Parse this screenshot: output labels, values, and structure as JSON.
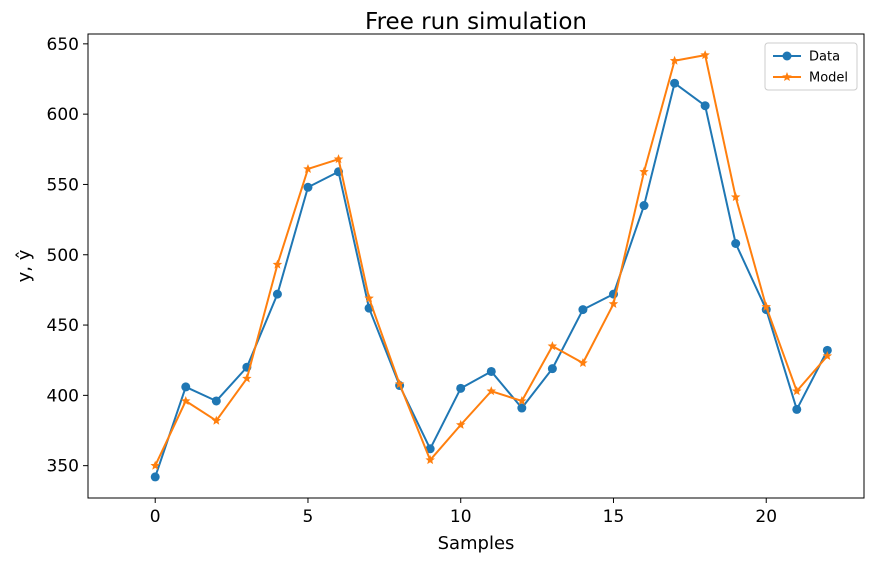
{
  "chart_data": {
    "type": "line",
    "title": "Free run simulation",
    "xlabel": "Samples",
    "ylabel": "y, ŷ",
    "xlim": [
      -2.2,
      23.2
    ],
    "ylim": [
      327,
      657
    ],
    "xticks": [
      0,
      5,
      10,
      15,
      20
    ],
    "yticks": [
      350,
      400,
      450,
      500,
      550,
      600,
      650
    ],
    "grid": false,
    "legend_position": "top-right",
    "x": [
      0,
      1,
      2,
      3,
      4,
      5,
      6,
      7,
      8,
      9,
      10,
      11,
      12,
      13,
      14,
      15,
      16,
      17,
      18,
      19,
      20,
      21,
      22
    ],
    "series": [
      {
        "name": "Data",
        "color": "#1f77b4",
        "marker": "circle",
        "values": [
          342,
          406,
          396,
          420,
          472,
          548,
          559,
          462,
          407,
          362,
          405,
          417,
          391,
          419,
          461,
          472,
          535,
          622,
          606,
          508,
          461,
          390,
          432
        ]
      },
      {
        "name": "Model",
        "color": "#ff7f0e",
        "marker": "star",
        "values": [
          350,
          396,
          382,
          412,
          493,
          561,
          568,
          469,
          408,
          354,
          379,
          403,
          396,
          435,
          423,
          465,
          559,
          638,
          642,
          541,
          463,
          403,
          428
        ]
      }
    ]
  }
}
